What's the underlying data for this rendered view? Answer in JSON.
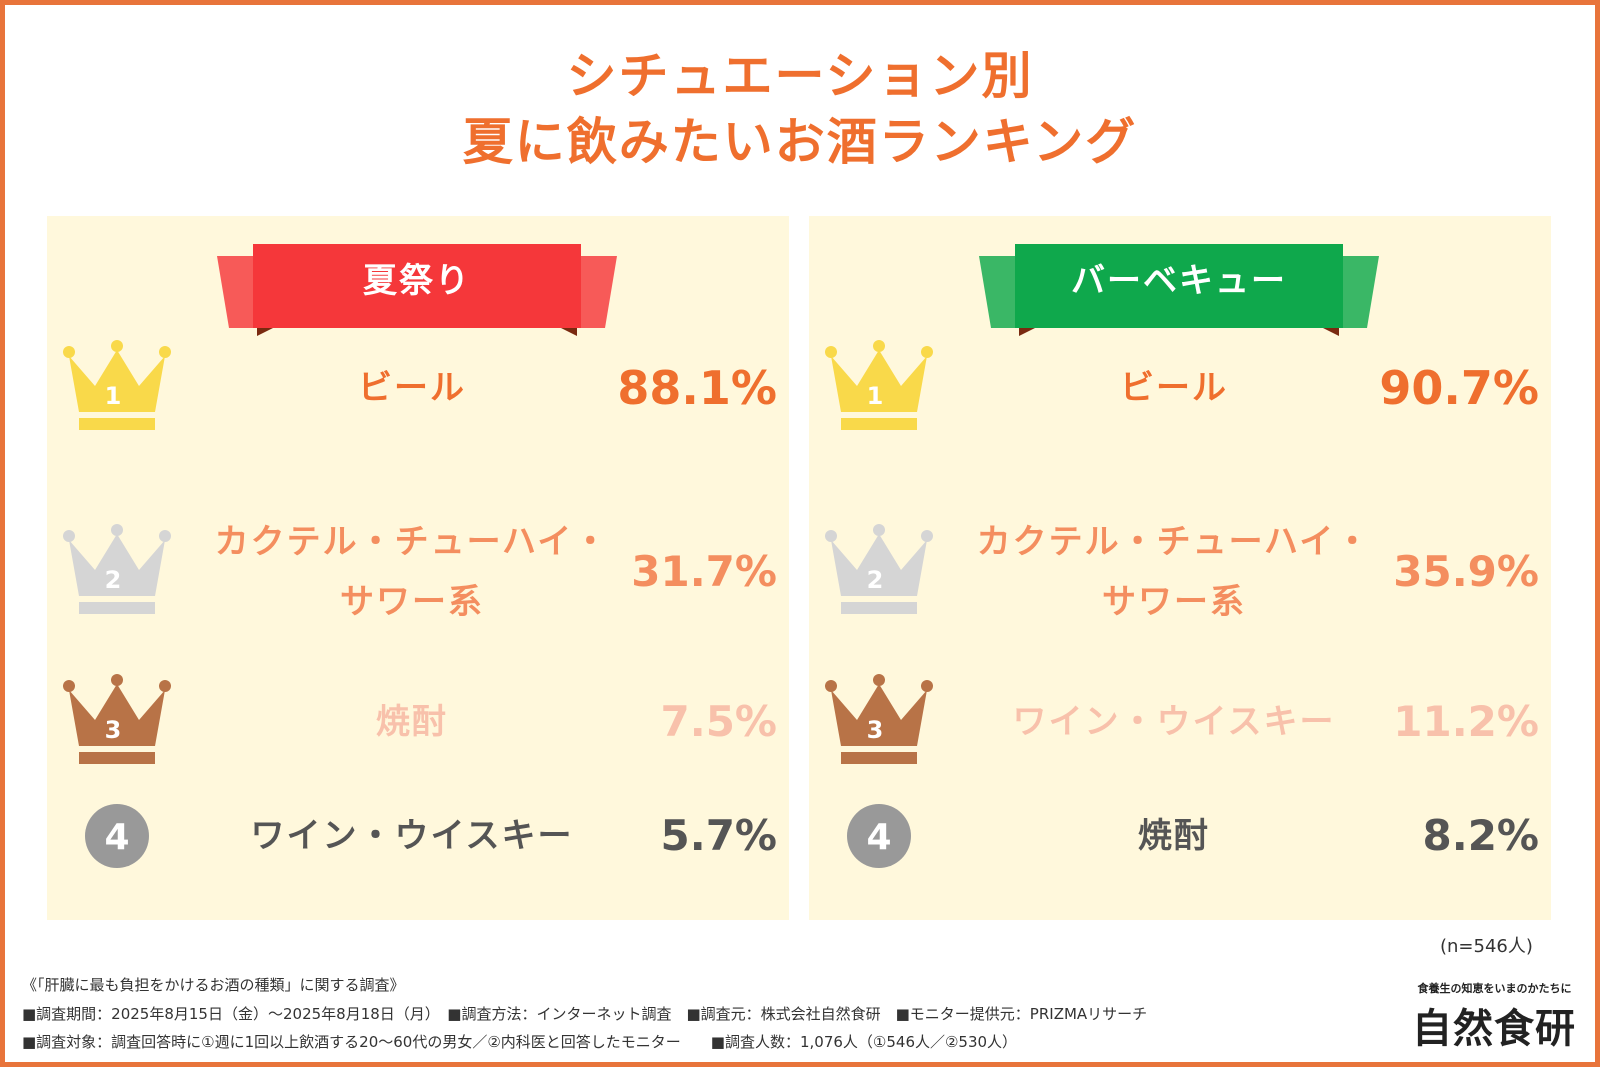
{
  "title_line1": "シチュエーション別",
  "title_line2": "夏に飲みたいお酒ランキング",
  "chart_data": [
    {
      "type": "table",
      "title": "夏祭り",
      "ribbon_color": "#f5373a",
      "items": [
        {
          "rank": 1,
          "label_line1": "ビール",
          "label_line2": "",
          "value": 88.1,
          "display": "88.1%"
        },
        {
          "rank": 2,
          "label_line1": "カクテル・チューハイ・",
          "label_line2": "サワー系",
          "value": 31.7,
          "display": "31.7%"
        },
        {
          "rank": 3,
          "label_line1": "焼酎",
          "label_line2": "",
          "value": 7.5,
          "display": "7.5%"
        },
        {
          "rank": 4,
          "label_line1": "ワイン・ウイスキー",
          "label_line2": "",
          "value": 5.7,
          "display": "5.7%"
        }
      ]
    },
    {
      "type": "table",
      "title": "バーベキュー",
      "ribbon_color": "#0fa84c",
      "items": [
        {
          "rank": 1,
          "label_line1": "ビール",
          "label_line2": "",
          "value": 90.7,
          "display": "90.7%"
        },
        {
          "rank": 2,
          "label_line1": "カクテル・チューハイ・",
          "label_line2": "サワー系",
          "value": 35.9,
          "display": "35.9%"
        },
        {
          "rank": 3,
          "label_line1": "ワイン・ウイスキー",
          "label_line2": "",
          "value": 11.2,
          "display": "11.2%"
        },
        {
          "rank": 4,
          "label_line1": "焼酎",
          "label_line2": "",
          "value": 8.2,
          "display": "8.2%"
        }
      ]
    }
  ],
  "rank_colors": {
    "1": {
      "crown": "#f9d94a",
      "text": "#ef6f2e"
    },
    "2": {
      "crown": "#d5d5d5",
      "text": "#f48e5f"
    },
    "3": {
      "crown": "#b87347",
      "text": "#f8c1ab"
    },
    "4": {
      "crown": "#999999",
      "text": "#555555"
    }
  },
  "footer": {
    "sample_size": "(n=546人)",
    "survey_title": "《「肝臓に最も負担をかけるお酒の種類」に関する調査》",
    "line2": "■調査期間：2025年8月15日（金）～2025年8月18日（月）　■調査方法：インターネット調査　■調査元：株式会社自然食研　■モニター提供元：PRIZMAリサーチ",
    "line3": "■調査対象：調査回答時に①週に1回以上飲酒する20～60代の男女／②内科医と回答したモニター　　■調査人数：1,076人（①546人／②530人）"
  },
  "logo": {
    "tagline": "食養生の知恵をいまのかたちに",
    "name": "自然食研"
  }
}
